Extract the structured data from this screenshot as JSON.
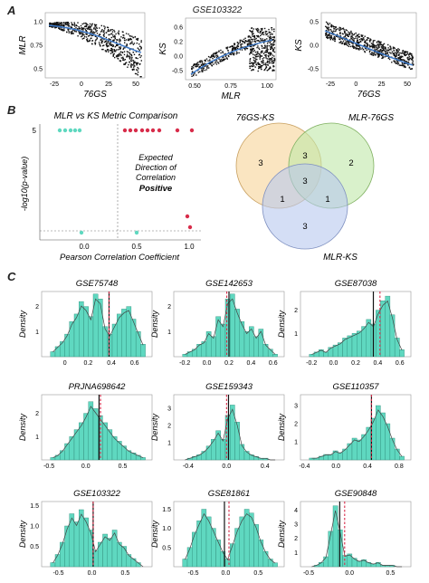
{
  "panels": {
    "A": "A",
    "B": "B",
    "C": "C"
  },
  "panel_a": {
    "dataset": "GSE103322",
    "plots": [
      {
        "ylabel": "MLR",
        "xlabel": "76GS",
        "yticks": [
          "1.0",
          "0.75",
          "0.5"
        ],
        "xticks": [
          "-25",
          "0",
          "25",
          "50"
        ]
      },
      {
        "ylabel": "KS",
        "xlabel": "MLR",
        "yticks": [
          "0.6",
          "0.2",
          "0.0",
          "-0.5"
        ],
        "xticks": [
          "0.50",
          "0.75",
          "1.00"
        ]
      },
      {
        "ylabel": "KS",
        "xlabel": "76GS",
        "yticks": [
          "0.5",
          "0.0",
          "-0.5"
        ],
        "xticks": [
          "-25",
          "0",
          "25",
          "50"
        ]
      }
    ]
  },
  "panel_b": {
    "title": "MLR vs KS Metric Comparison",
    "ylabel": "-log10(p-value)",
    "xlabel": "Pearson Correlation Coefficient",
    "ytick": "5",
    "xticks": [
      "0.0",
      "0.5",
      "1.0"
    ],
    "annotation_line1": "Expected",
    "annotation_line2": "Direction of",
    "annotation_line3": "Correlation",
    "annotation_line4": "Positive",
    "colors": {
      "teal": "#5fd8c0",
      "red": "#d82c4a"
    }
  },
  "venn": {
    "labels": {
      "a": "76GS-KS",
      "b": "MLR-76GS",
      "c": "MLR-KS"
    },
    "regions": {
      "a_only": "3",
      "b_only": "2",
      "c_only": "3",
      "ab": "3",
      "abc": "3",
      "ac": "1",
      "bc": "1"
    },
    "colors": {
      "a": "#f7d7a0",
      "b": "#bfe8a8",
      "c": "#b8c8ee"
    }
  },
  "chart_data": [
    {
      "type": "histogram",
      "title": "GSE75748",
      "ylabel": "Density",
      "xticks": [
        "0",
        "0.2",
        "0.4",
        "0.6"
      ],
      "yticks": [
        "1",
        "2"
      ],
      "xlim": [
        -0.2,
        0.75
      ],
      "ylim": [
        0,
        2.6
      ],
      "solid_line": 0.38,
      "dashed_line": 0.38,
      "values": [
        0.2,
        0.4,
        0.6,
        0.9,
        1.4,
        1.7,
        2.2,
        2.0,
        1.6,
        2.5,
        2.3,
        1.2,
        0.9,
        1.3,
        1.7,
        1.9,
        2.0,
        1.5,
        1.0,
        0.5
      ]
    },
    {
      "type": "histogram",
      "title": "GSE142653",
      "ylabel": "Density",
      "xticks": [
        "-0.2",
        "0.0",
        "0.2",
        "0.4",
        "0.6"
      ],
      "yticks": [
        "1",
        "2"
      ],
      "xlim": [
        -0.3,
        0.7
      ],
      "ylim": [
        0,
        2.6
      ],
      "solid_line": 0.2,
      "dashed_line": 0.18,
      "values": [
        0.1,
        0.2,
        0.3,
        0.5,
        0.6,
        1.0,
        0.8,
        1.6,
        1.3,
        2.3,
        2.5,
        1.9,
        1.4,
        1.0,
        1.2,
        0.8,
        1.1,
        0.5,
        0.3,
        0.1
      ]
    },
    {
      "type": "histogram",
      "title": "GSE87038",
      "ylabel": "Density",
      "xticks": [
        "-0.2",
        "0.0",
        "0.2",
        "0.4",
        "0.6"
      ],
      "yticks": [
        "1",
        "2"
      ],
      "xlim": [
        -0.3,
        0.7
      ],
      "ylim": [
        0,
        2.8
      ],
      "solid_line": 0.36,
      "dashed_line": 0.42,
      "values": [
        0.1,
        0.2,
        0.3,
        0.2,
        0.4,
        0.5,
        0.6,
        0.8,
        0.9,
        1.0,
        1.1,
        1.3,
        1.6,
        1.4,
        2.0,
        2.4,
        2.6,
        1.8,
        0.8,
        0.3
      ]
    },
    {
      "type": "histogram",
      "title": "PRJNA698642",
      "ylabel": "Density",
      "xticks": [
        "-0.5",
        "0.0",
        "0.5"
      ],
      "yticks": [
        "1",
        "2"
      ],
      "xlim": [
        -0.6,
        0.9
      ],
      "ylim": [
        0,
        2.8
      ],
      "solid_line": 0.18,
      "dashed_line": 0.2,
      "values": [
        0.1,
        0.2,
        0.4,
        0.7,
        1.0,
        1.3,
        1.6,
        2.0,
        2.5,
        2.2,
        1.9,
        1.6,
        1.3,
        1.0,
        0.8,
        0.6,
        0.4,
        0.3,
        0.2,
        0.1
      ]
    },
    {
      "type": "histogram",
      "title": "GSE159343",
      "ylabel": "Density",
      "xticks": [
        "-0.4",
        "0.0",
        "0.4"
      ],
      "yticks": [
        "1",
        "2",
        "3"
      ],
      "xlim": [
        -0.55,
        0.6
      ],
      "ylim": [
        0,
        3.8
      ],
      "solid_line": 0.02,
      "dashed_line": 0.0,
      "values": [
        0.0,
        0.1,
        0.2,
        0.3,
        0.5,
        0.8,
        1.2,
        1.7,
        1.2,
        2.6,
        3.2,
        2.2,
        0.9,
        0.5,
        0.3,
        0.2,
        0.1,
        0.1,
        0.0,
        0.0
      ]
    },
    {
      "type": "histogram",
      "title": "GSE110357",
      "ylabel": "Density",
      "xticks": [
        "-0.4",
        "0.0",
        "0.4",
        "0.8"
      ],
      "yticks": [
        "1",
        "2",
        "3"
      ],
      "xlim": [
        -0.45,
        0.95
      ],
      "ylim": [
        0,
        3.6
      ],
      "solid_line": 0.45,
      "dashed_line": 0.45,
      "values": [
        0.1,
        0.1,
        0.2,
        0.3,
        0.3,
        0.5,
        0.4,
        0.6,
        0.9,
        1.2,
        1.1,
        1.4,
        1.8,
        2.3,
        3.0,
        2.6,
        2.0,
        1.2,
        0.6,
        0.2
      ]
    },
    {
      "type": "histogram",
      "title": "GSE103322",
      "ylabel": "Density",
      "xticks": [
        "-0.5",
        "0.0",
        "0.5"
      ],
      "yticks": [
        "0.5",
        "1.0",
        "1.5"
      ],
      "xlim": [
        -0.75,
        0.9
      ],
      "ylim": [
        0,
        1.6
      ],
      "solid_line": 0.02,
      "dashed_line": 0.02,
      "values": [
        0.1,
        0.3,
        0.6,
        1.0,
        1.3,
        1.1,
        1.4,
        1.2,
        0.9,
        0.4,
        0.6,
        0.8,
        0.7,
        0.9,
        0.6,
        0.5,
        0.3,
        0.2,
        0.1,
        0.0
      ]
    },
    {
      "type": "histogram",
      "title": "GSE81861",
      "ylabel": "Density",
      "xticks": [
        "-0.5",
        "0.0",
        "0.5"
      ],
      "yticks": [
        "0.5",
        "1.0",
        "1.5"
      ],
      "xlim": [
        -0.8,
        0.9
      ],
      "ylim": [
        0,
        1.7
      ],
      "solid_line": -0.02,
      "dashed_line": 0.05,
      "values": [
        0.2,
        0.5,
        0.9,
        1.2,
        1.5,
        1.3,
        1.0,
        0.7,
        0.4,
        0.2,
        0.6,
        1.0,
        1.3,
        1.5,
        1.4,
        1.1,
        0.7,
        0.4,
        0.2,
        0.1
      ]
    },
    {
      "type": "histogram",
      "title": "GSE90848",
      "ylabel": "Density",
      "xticks": [
        "-0.5",
        "0.0",
        "0.5"
      ],
      "yticks": [
        "1",
        "2",
        "3",
        "4"
      ],
      "xlim": [
        -0.6,
        0.75
      ],
      "ylim": [
        0,
        4.6
      ],
      "solid_line": -0.12,
      "dashed_line": -0.06,
      "values": [
        0.0,
        0.1,
        0.3,
        0.7,
        2.5,
        4.3,
        2.6,
        0.8,
        0.9,
        0.6,
        0.4,
        0.5,
        0.3,
        0.2,
        0.3,
        0.1,
        0.1,
        0.1,
        0.0,
        0.0
      ]
    }
  ]
}
